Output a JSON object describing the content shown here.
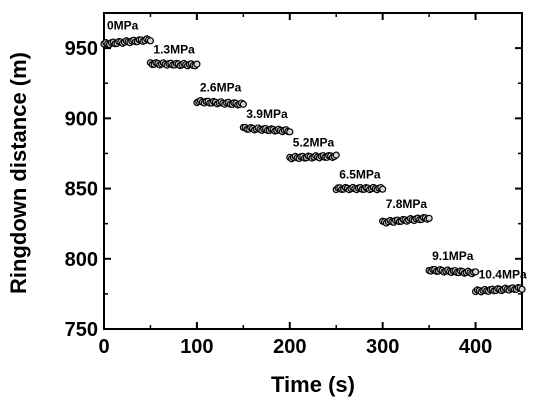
{
  "chart_data": {
    "type": "scatter",
    "xlabel": "Time (s)",
    "ylabel": "Ringdown distance (m)",
    "xlim": [
      0,
      450
    ],
    "ylim": [
      750,
      975
    ],
    "xticks": [
      "0",
      "100",
      "200",
      "300",
      "400"
    ],
    "yticks": [
      "750",
      "800",
      "850",
      "900",
      "950"
    ],
    "marker": "hollow-circle",
    "colors": {
      "marker_fill": "#d6d6d6",
      "marker_stroke": "#000000"
    },
    "segments": [
      {
        "label": "0MPa",
        "x_range": [
          0,
          50
        ],
        "y_start": 953,
        "y_end": 956
      },
      {
        "label": "1.3MPa",
        "x_range": [
          50,
          100
        ],
        "y_start": 939,
        "y_end": 938
      },
      {
        "label": "2.6MPa",
        "x_range": [
          100,
          150
        ],
        "y_start": 912,
        "y_end": 910
      },
      {
        "label": "3.9MPa",
        "x_range": [
          150,
          200
        ],
        "y_start": 893,
        "y_end": 891
      },
      {
        "label": "5.2MPa",
        "x_range": [
          200,
          250
        ],
        "y_start": 872,
        "y_end": 873
      },
      {
        "label": "6.5MPa",
        "x_range": [
          250,
          300
        ],
        "y_start": 850,
        "y_end": 850
      },
      {
        "label": "7.8MPa",
        "x_range": [
          300,
          350
        ],
        "y_start": 826,
        "y_end": 829
      },
      {
        "label": "9.1MPa",
        "x_range": [
          350,
          400
        ],
        "y_start": 792,
        "y_end": 790
      },
      {
        "label": "10.4MPa",
        "x_range": [
          400,
          450
        ],
        "y_start": 777,
        "y_end": 779
      }
    ]
  }
}
